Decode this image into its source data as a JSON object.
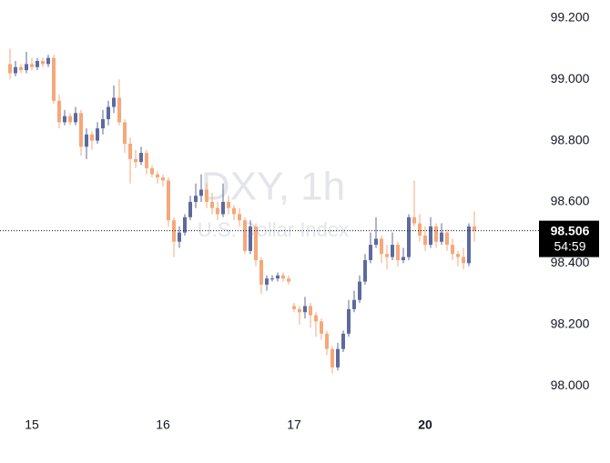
{
  "chart_data": {
    "type": "candlestick",
    "title": "DXY, 1h",
    "subtitle": "U.S. Dollar Index",
    "categories": [
      null,
      null,
      null,
      null,
      "15",
      null,
      null,
      null,
      null,
      null,
      null,
      null,
      null,
      null,
      null,
      null,
      null,
      null,
      null,
      null,
      null,
      null,
      null,
      null,
      null,
      null,
      null,
      null,
      "16",
      null,
      null,
      null,
      null,
      null,
      null,
      null,
      null,
      null,
      null,
      null,
      null,
      null,
      null,
      null,
      null,
      null,
      null,
      null,
      null,
      null,
      null,
      null,
      "17",
      null,
      null,
      null,
      null,
      null,
      null,
      null,
      null,
      null,
      null,
      null,
      null,
      null,
      null,
      null,
      null,
      null,
      null,
      null,
      null,
      null,
      null,
      null,
      "20",
      null,
      null,
      null,
      null,
      null,
      null,
      null,
      null,
      null
    ],
    "open": [
      99.05,
      99.02,
      99.04,
      99.03,
      99.05,
      99.04,
      99.06,
      99.05,
      99.07,
      98.93,
      98.86,
      98.88,
      98.86,
      98.89,
      98.78,
      98.82,
      98.8,
      98.84,
      98.87,
      98.91,
      98.94,
      98.86,
      98.79,
      98.74,
      98.73,
      98.76,
      98.71,
      98.69,
      98.68,
      98.67,
      98.54,
      98.47,
      98.5,
      98.55,
      98.6,
      98.62,
      98.64,
      98.6,
      98.58,
      98.56,
      98.6,
      98.58,
      98.56,
      98.54,
      98.44,
      98.52,
      98.41,
      98.33,
      98.35,
      98.35,
      98.36,
      98.35,
      98.26,
      98.25,
      98.24,
      98.26,
      98.23,
      98.21,
      98.17,
      98.12,
      98.06,
      98.12,
      98.17,
      98.25,
      98.28,
      98.34,
      98.41,
      98.46,
      98.48,
      98.43,
      98.42,
      98.46,
      98.41,
      98.42,
      98.55,
      98.53,
      98.49,
      98.46,
      98.52,
      98.47,
      98.5,
      98.46,
      98.43,
      98.42,
      98.4,
      98.52
    ],
    "high": [
      99.1,
      99.06,
      99.05,
      99.09,
      99.07,
      99.07,
      99.07,
      99.08,
      99.08,
      98.95,
      98.9,
      98.89,
      98.91,
      98.9,
      98.84,
      98.83,
      98.86,
      98.9,
      98.93,
      98.98,
      99.0,
      98.87,
      98.81,
      98.77,
      98.78,
      98.77,
      98.72,
      98.7,
      98.69,
      98.68,
      98.55,
      98.52,
      98.56,
      98.62,
      98.66,
      98.69,
      98.66,
      98.63,
      98.6,
      98.66,
      98.62,
      98.59,
      98.58,
      98.55,
      98.54,
      98.53,
      98.42,
      98.36,
      98.36,
      98.37,
      98.37,
      98.36,
      98.27,
      98.26,
      98.29,
      98.27,
      98.24,
      98.22,
      98.18,
      98.13,
      98.14,
      98.18,
      98.28,
      98.31,
      98.36,
      98.43,
      98.5,
      98.55,
      98.49,
      98.46,
      98.5,
      98.47,
      98.45,
      98.56,
      98.67,
      98.56,
      98.52,
      98.55,
      98.53,
      98.53,
      98.51,
      98.48,
      98.44,
      98.45,
      98.53,
      98.57
    ],
    "low": [
      99.0,
      99.01,
      99.02,
      99.02,
      99.03,
      99.03,
      99.04,
      99.04,
      98.92,
      98.84,
      98.85,
      98.85,
      98.85,
      98.75,
      98.74,
      98.77,
      98.79,
      98.82,
      98.85,
      98.89,
      98.85,
      98.76,
      98.66,
      98.71,
      98.72,
      98.69,
      98.68,
      98.66,
      98.65,
      98.52,
      98.42,
      98.45,
      98.49,
      98.54,
      98.58,
      98.6,
      98.58,
      98.56,
      98.54,
      98.55,
      98.56,
      98.54,
      98.52,
      98.43,
      98.43,
      98.39,
      98.3,
      98.31,
      98.34,
      98.34,
      98.34,
      98.33,
      98.24,
      98.2,
      98.22,
      98.19,
      98.16,
      98.15,
      98.1,
      98.04,
      98.05,
      98.11,
      98.16,
      98.24,
      98.27,
      98.33,
      98.4,
      98.45,
      98.4,
      98.38,
      98.41,
      98.39,
      98.4,
      98.41,
      98.52,
      98.47,
      98.44,
      98.45,
      98.45,
      98.46,
      98.44,
      98.41,
      98.39,
      98.38,
      98.39,
      98.47
    ],
    "close": [
      99.02,
      99.04,
      99.03,
      99.05,
      99.04,
      99.06,
      99.05,
      99.07,
      98.93,
      98.86,
      98.88,
      98.86,
      98.89,
      98.78,
      98.82,
      98.8,
      98.84,
      98.87,
      98.91,
      98.94,
      98.86,
      98.79,
      98.74,
      98.73,
      98.76,
      98.71,
      98.69,
      98.68,
      98.67,
      98.54,
      98.47,
      98.5,
      98.55,
      98.6,
      98.62,
      98.64,
      98.6,
      98.58,
      98.56,
      98.6,
      98.58,
      98.56,
      98.54,
      98.44,
      98.52,
      98.41,
      98.33,
      98.35,
      98.35,
      98.36,
      98.35,
      98.34,
      98.25,
      98.24,
      98.26,
      98.23,
      98.21,
      98.17,
      98.12,
      98.06,
      98.12,
      98.17,
      98.25,
      98.28,
      98.34,
      98.41,
      98.46,
      98.48,
      98.43,
      98.42,
      98.46,
      98.41,
      98.42,
      98.55,
      98.53,
      98.49,
      98.46,
      98.52,
      98.47,
      98.5,
      98.46,
      98.43,
      98.42,
      98.4,
      98.52,
      98.506
    ],
    "up_color": "#5d6a9e",
    "down_color": "#f5a87a",
    "ylim": [
      97.923,
      99.259
    ],
    "yticks": [
      {
        "value": 98.0,
        "label": "98.000"
      },
      {
        "value": 98.2,
        "label": "98.200"
      },
      {
        "value": 98.4,
        "label": "98.400"
      },
      {
        "value": 98.6,
        "label": "98.600"
      },
      {
        "value": 98.8,
        "label": "98.800"
      },
      {
        "value": 99.0,
        "label": "99.000"
      },
      {
        "value": 99.2,
        "label": "99.200"
      }
    ],
    "countdown": "54:59"
  }
}
